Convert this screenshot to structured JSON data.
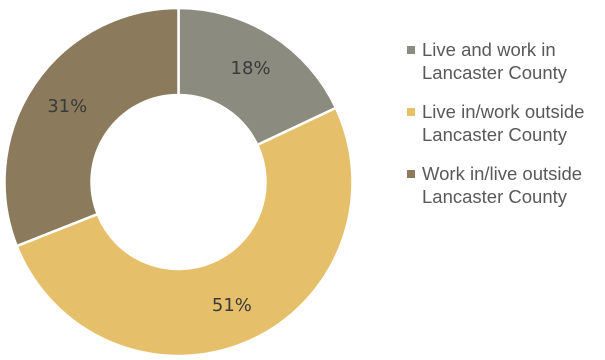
{
  "chart_data": {
    "type": "pie",
    "title": "",
    "series": [
      {
        "name": "Live and work in Lancaster County",
        "value": 18,
        "label": "18%",
        "color": "#8c8b7f"
      },
      {
        "name": "Live in/work outside Lancaster County",
        "value": 51,
        "label": "51%",
        "color": "#e6bf6a"
      },
      {
        "name": "Work in/live outside Lancaster County",
        "value": 31,
        "label": "31%",
        "color": "#8b7a5c"
      }
    ],
    "legend_position": "right",
    "donut": true
  }
}
